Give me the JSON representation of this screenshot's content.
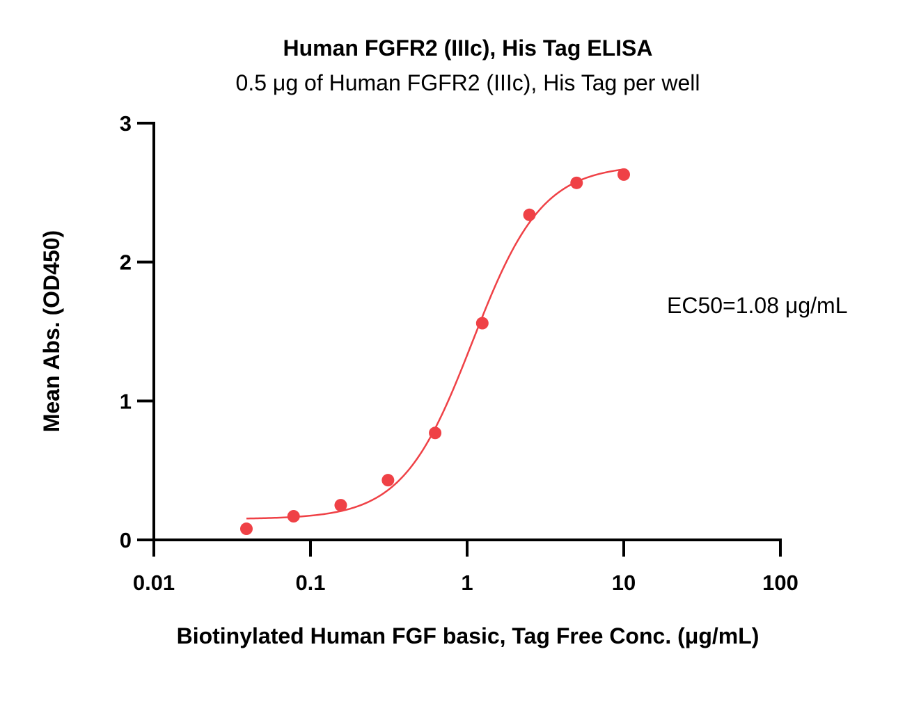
{
  "chart_data": {
    "type": "scatter",
    "title": "Human FGFR2 (IIIc), His Tag ELISA",
    "subtitle": "0.5 μg of Human FGFR2 (IIIc), His Tag per well",
    "xlabel": "Biotinylated Human FGF basic, Tag Free Conc. (μg/mL)",
    "ylabel": "Mean Abs. (OD450)",
    "x_scale": "log",
    "xlim": [
      0.01,
      100
    ],
    "ylim": [
      0,
      3
    ],
    "x_ticks": [
      0.01,
      0.1,
      1,
      10,
      100
    ],
    "x_tick_labels": [
      "0.01",
      "0.1",
      "1",
      "10",
      "100"
    ],
    "y_ticks": [
      0,
      1,
      2,
      3
    ],
    "y_tick_labels": [
      "0",
      "1",
      "2",
      "3"
    ],
    "grid": false,
    "series": [
      {
        "color": "#ef4146",
        "x": [
          0.039,
          0.078,
          0.156,
          0.3125,
          0.625,
          1.25,
          2.5,
          5,
          10
        ],
        "y": [
          0.08,
          0.17,
          0.25,
          0.43,
          0.77,
          1.56,
          2.34,
          2.57,
          2.63
        ]
      }
    ],
    "fit": {
      "model": "4PL",
      "bottom": 0.15,
      "top": 2.7,
      "ec50": 1.08,
      "hill": 1.95,
      "x_range": [
        0.039,
        10
      ],
      "color": "#ef4146"
    },
    "annotations": [
      {
        "text": "EC50=1.08 μg/mL"
      }
    ]
  }
}
